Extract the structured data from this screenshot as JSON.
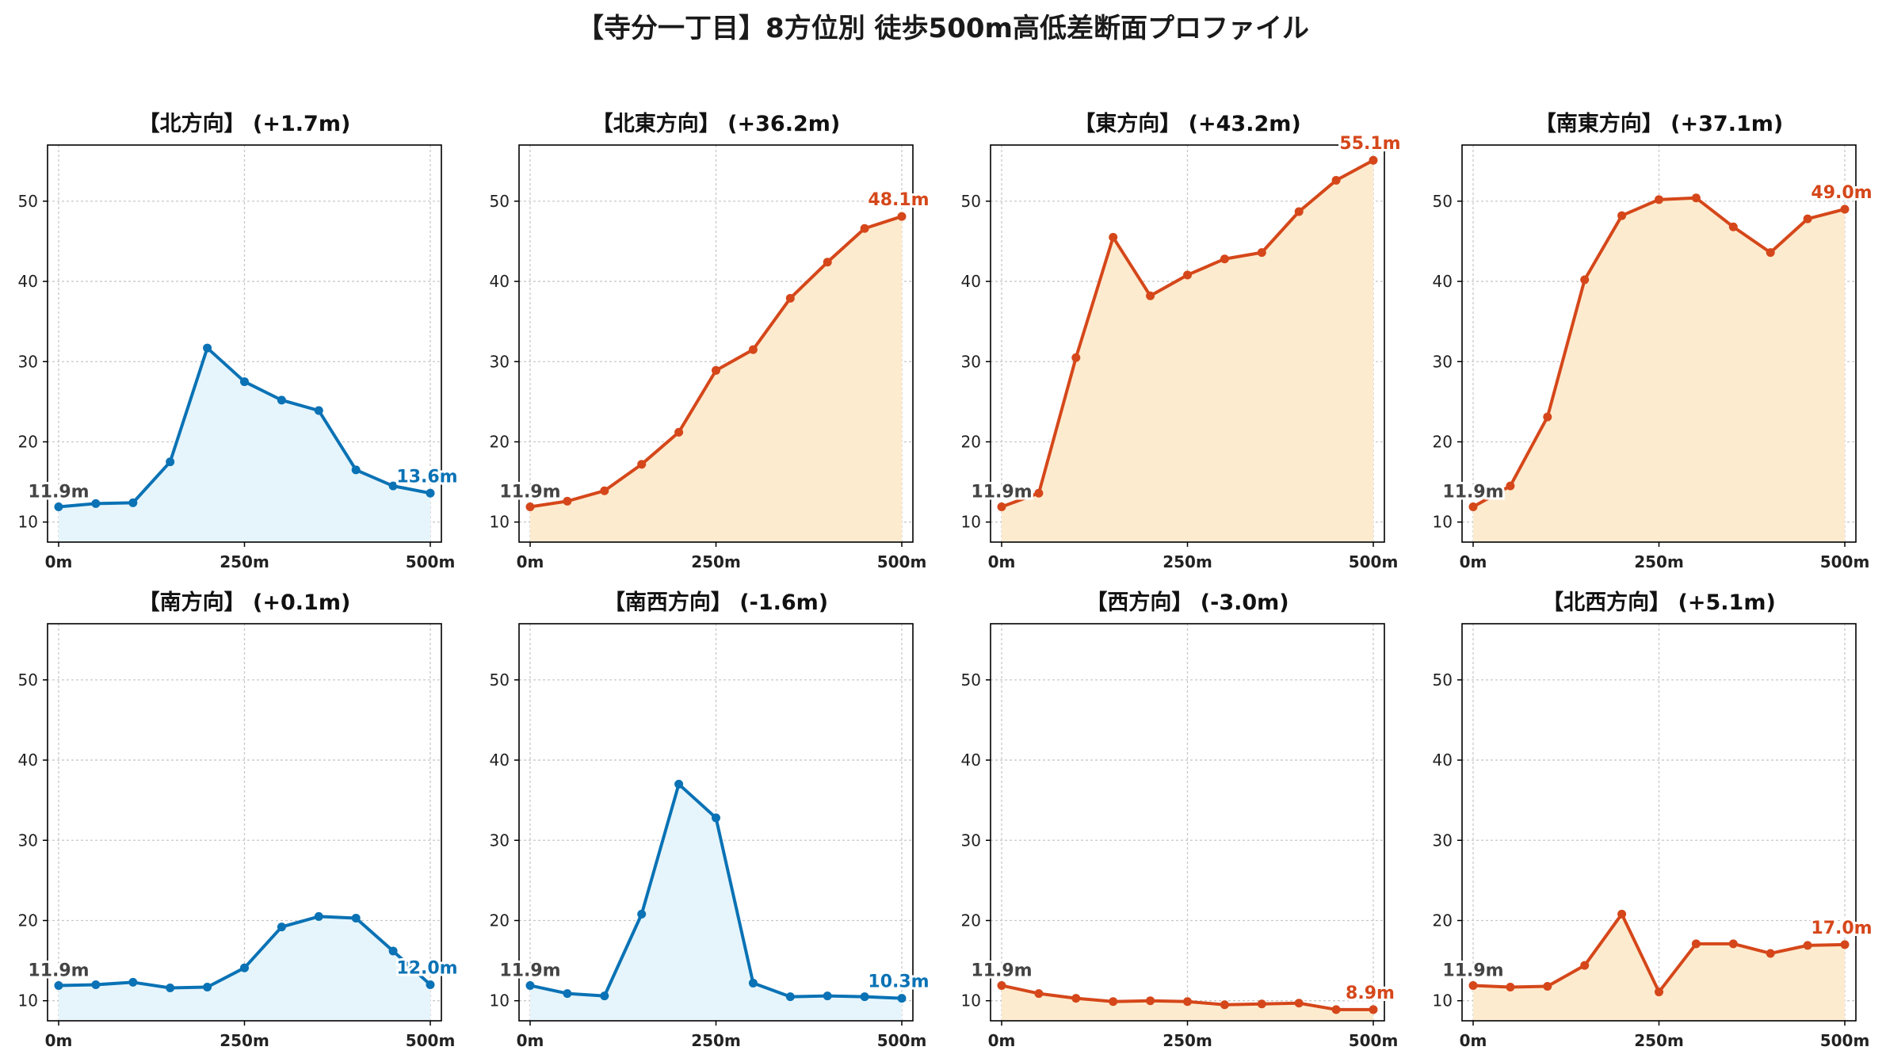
{
  "title": "【寺分一丁目】8方位別 徒歩500m高低差断面プロファイル",
  "colors": {
    "down_line": "#0a72b5",
    "down_fill": "#e6f5fb",
    "up_line": "#d5471a",
    "up_fill": "#fdebcf"
  },
  "chart_data": [
    {
      "type": "area",
      "title": "【北方向】 (+1.7m)",
      "trend": "down",
      "x": [
        0,
        50,
        100,
        150,
        200,
        250,
        300,
        350,
        400,
        450,
        500
      ],
      "y": [
        11.9,
        12.3,
        12.4,
        17.5,
        31.7,
        27.5,
        25.2,
        23.9,
        16.5,
        14.5,
        13.6
      ],
      "start_label": "11.9m",
      "end_label": "13.6m",
      "xticks": [
        "0m",
        "250m",
        "500m"
      ],
      "yticks": [
        10,
        20,
        30,
        40,
        50
      ],
      "ylim": [
        7.5,
        57
      ],
      "grid": true
    },
    {
      "type": "area",
      "title": "【北東方向】 (+36.2m)",
      "trend": "up",
      "x": [
        0,
        50,
        100,
        150,
        200,
        250,
        300,
        350,
        400,
        450,
        500
      ],
      "y": [
        11.9,
        12.6,
        13.9,
        17.2,
        21.2,
        28.9,
        31.5,
        37.9,
        42.4,
        46.6,
        48.1
      ],
      "start_label": "11.9m",
      "end_label": "48.1m",
      "xticks": [
        "0m",
        "250m",
        "500m"
      ],
      "yticks": [
        10,
        20,
        30,
        40,
        50
      ],
      "ylim": [
        7.5,
        57
      ],
      "grid": true
    },
    {
      "type": "area",
      "title": "【東方向】 (+43.2m)",
      "trend": "up",
      "x": [
        0,
        50,
        100,
        150,
        200,
        250,
        300,
        350,
        400,
        450,
        500
      ],
      "y": [
        11.9,
        13.6,
        30.5,
        45.5,
        38.2,
        40.8,
        42.8,
        43.6,
        48.7,
        52.6,
        55.1
      ],
      "start_label": "11.9m",
      "end_label": "55.1m",
      "xticks": [
        "0m",
        "250m",
        "500m"
      ],
      "yticks": [
        10,
        20,
        30,
        40,
        50
      ],
      "ylim": [
        7.5,
        57
      ],
      "grid": true
    },
    {
      "type": "area",
      "title": "【南東方向】 (+37.1m)",
      "trend": "up",
      "x": [
        0,
        50,
        100,
        150,
        200,
        250,
        300,
        350,
        400,
        450,
        500
      ],
      "y": [
        11.9,
        14.5,
        23.1,
        40.2,
        48.2,
        50.2,
        50.4,
        46.8,
        43.6,
        47.8,
        49.0
      ],
      "start_label": "11.9m",
      "end_label": "49.0m",
      "xticks": [
        "0m",
        "250m",
        "500m"
      ],
      "yticks": [
        10,
        20,
        30,
        40,
        50
      ],
      "ylim": [
        7.5,
        57
      ],
      "grid": true
    },
    {
      "type": "area",
      "title": "【南方向】 (+0.1m)",
      "trend": "down",
      "x": [
        0,
        50,
        100,
        150,
        200,
        250,
        300,
        350,
        400,
        450,
        500
      ],
      "y": [
        11.9,
        12.0,
        12.3,
        11.6,
        11.7,
        14.1,
        19.2,
        20.5,
        20.3,
        16.2,
        12.0
      ],
      "start_label": "11.9m",
      "end_label": "12.0m",
      "xticks": [
        "0m",
        "250m",
        "500m"
      ],
      "yticks": [
        10,
        20,
        30,
        40,
        50
      ],
      "ylim": [
        7.5,
        57
      ],
      "grid": true
    },
    {
      "type": "area",
      "title": "【南西方向】 (-1.6m)",
      "trend": "down",
      "x": [
        0,
        50,
        100,
        150,
        200,
        250,
        300,
        350,
        400,
        450,
        500
      ],
      "y": [
        11.9,
        10.9,
        10.6,
        20.8,
        37.0,
        32.8,
        12.2,
        10.5,
        10.6,
        10.5,
        10.3
      ],
      "start_label": "11.9m",
      "end_label": "10.3m",
      "xticks": [
        "0m",
        "250m",
        "500m"
      ],
      "yticks": [
        10,
        20,
        30,
        40,
        50
      ],
      "ylim": [
        7.5,
        57
      ],
      "grid": true
    },
    {
      "type": "area",
      "title": "【西方向】 (-3.0m)",
      "trend": "up",
      "x": [
        0,
        50,
        100,
        150,
        200,
        250,
        300,
        350,
        400,
        450,
        500
      ],
      "y": [
        11.9,
        10.9,
        10.3,
        9.9,
        10.0,
        9.9,
        9.5,
        9.6,
        9.7,
        8.9,
        8.9
      ],
      "start_label": "11.9m",
      "end_label": "8.9m",
      "xticks": [
        "0m",
        "250m",
        "500m"
      ],
      "yticks": [
        10,
        20,
        30,
        40,
        50
      ],
      "ylim": [
        7.5,
        57
      ],
      "grid": true
    },
    {
      "type": "area",
      "title": "【北西方向】 (+5.1m)",
      "trend": "up",
      "x": [
        0,
        50,
        100,
        150,
        200,
        250,
        300,
        350,
        400,
        450,
        500
      ],
      "y": [
        11.9,
        11.7,
        11.8,
        14.4,
        20.8,
        11.1,
        17.1,
        17.1,
        15.9,
        16.9,
        17.0
      ],
      "start_label": "11.9m",
      "end_label": "17.0m",
      "xticks": [
        "0m",
        "250m",
        "500m"
      ],
      "yticks": [
        10,
        20,
        30,
        40,
        50
      ],
      "ylim": [
        7.5,
        57
      ],
      "grid": true
    }
  ]
}
